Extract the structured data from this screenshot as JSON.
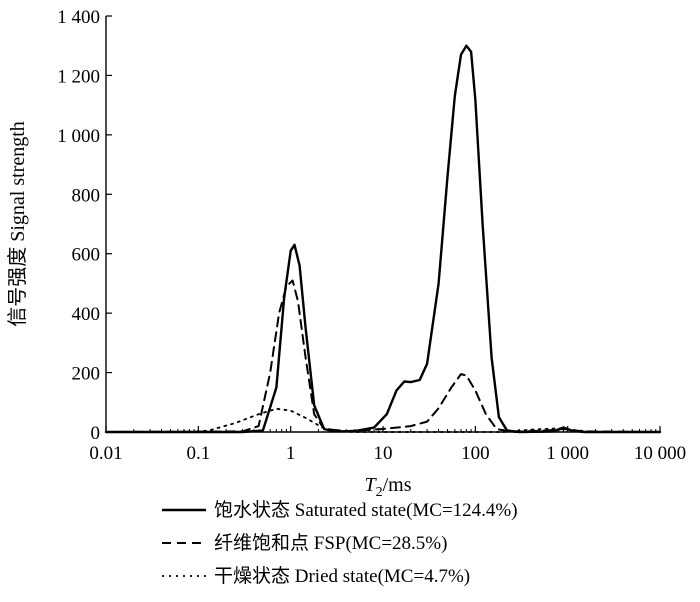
{
  "chart_data": {
    "type": "line",
    "xscale": "log",
    "xlim": [
      0.01,
      10000
    ],
    "ylim": [
      0,
      1400
    ],
    "grid": false,
    "legend_position": "bottom",
    "xlabel_main": "T",
    "xlabel_sub": "2",
    "xlabel_unit": "/ms",
    "ylabel": "信号强度 Signal strength",
    "xticks": [
      {
        "value": 0.01,
        "label": "0.01"
      },
      {
        "value": 0.1,
        "label": "0.1"
      },
      {
        "value": 1,
        "label": "1"
      },
      {
        "value": 10,
        "label": "10"
      },
      {
        "value": 100,
        "label": "100"
      },
      {
        "value": 1000,
        "label": "1 000"
      },
      {
        "value": 10000,
        "label": "10 000"
      }
    ],
    "yticks": [
      {
        "value": 0,
        "label": "0"
      },
      {
        "value": 200,
        "label": "200"
      },
      {
        "value": 400,
        "label": "400"
      },
      {
        "value": 600,
        "label": "600"
      },
      {
        "value": 800,
        "label": "800"
      },
      {
        "value": 1000,
        "label": "1 000"
      },
      {
        "value": 1200,
        "label": "1 200"
      },
      {
        "value": 1400,
        "label": "1 400"
      }
    ],
    "series": [
      {
        "name": "饱水状态 Saturated state(MC=124.4%)",
        "style": "solid",
        "points": [
          [
            0.01,
            0
          ],
          [
            0.3,
            0
          ],
          [
            0.5,
            5
          ],
          [
            0.7,
            150
          ],
          [
            0.85,
            450
          ],
          [
            1.0,
            610
          ],
          [
            1.1,
            630
          ],
          [
            1.25,
            560
          ],
          [
            1.45,
            350
          ],
          [
            1.8,
            90
          ],
          [
            2.3,
            10
          ],
          [
            3,
            2
          ],
          [
            5,
            3
          ],
          [
            8,
            15
          ],
          [
            11,
            60
          ],
          [
            14,
            140
          ],
          [
            17,
            170
          ],
          [
            20,
            168
          ],
          [
            25,
            175
          ],
          [
            30,
            230
          ],
          [
            40,
            500
          ],
          [
            50,
            860
          ],
          [
            60,
            1130
          ],
          [
            70,
            1270
          ],
          [
            80,
            1300
          ],
          [
            90,
            1280
          ],
          [
            100,
            1120
          ],
          [
            120,
            700
          ],
          [
            150,
            250
          ],
          [
            180,
            50
          ],
          [
            220,
            5
          ],
          [
            300,
            0
          ],
          [
            700,
            2
          ],
          [
            900,
            15
          ],
          [
            1100,
            5
          ],
          [
            1500,
            0
          ],
          [
            10000,
            0
          ]
        ]
      },
      {
        "name": "纤维饱和点 FSP(MC=28.5%)",
        "style": "dashed",
        "points": [
          [
            0.01,
            0
          ],
          [
            0.3,
            2
          ],
          [
            0.45,
            20
          ],
          [
            0.6,
            200
          ],
          [
            0.75,
            400
          ],
          [
            0.9,
            490
          ],
          [
            1.05,
            510
          ],
          [
            1.2,
            440
          ],
          [
            1.45,
            250
          ],
          [
            1.8,
            60
          ],
          [
            2.3,
            10
          ],
          [
            4,
            3
          ],
          [
            10,
            10
          ],
          [
            20,
            20
          ],
          [
            30,
            35
          ],
          [
            40,
            80
          ],
          [
            55,
            150
          ],
          [
            70,
            195
          ],
          [
            80,
            190
          ],
          [
            100,
            140
          ],
          [
            130,
            60
          ],
          [
            170,
            10
          ],
          [
            250,
            0
          ],
          [
            600,
            5
          ],
          [
            900,
            10
          ],
          [
            1500,
            2
          ],
          [
            10000,
            0
          ]
        ]
      },
      {
        "name": "干燥状态 Dried state(MC=4.7%)",
        "style": "dotted",
        "points": [
          [
            0.01,
            0
          ],
          [
            0.08,
            0
          ],
          [
            0.13,
            5
          ],
          [
            0.25,
            30
          ],
          [
            0.45,
            60
          ],
          [
            0.7,
            78
          ],
          [
            1.0,
            72
          ],
          [
            1.5,
            45
          ],
          [
            2.2,
            15
          ],
          [
            3.2,
            3
          ],
          [
            5,
            0
          ],
          [
            200,
            0
          ],
          [
            400,
            8
          ],
          [
            800,
            12
          ],
          [
            1200,
            6
          ],
          [
            2000,
            0
          ],
          [
            10000,
            0
          ]
        ]
      }
    ]
  }
}
